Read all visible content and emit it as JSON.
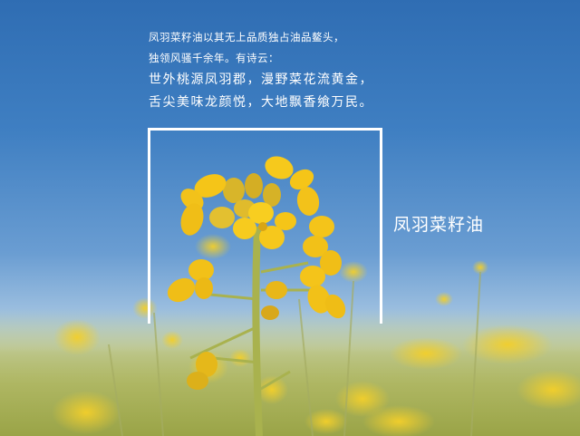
{
  "poem": {
    "line1": "凤羽菜籽油以其无上品质独占油品鳌头，",
    "line2": "独领风骚千余年。有诗云：",
    "line3": "世外桃源凤羽郡，漫野菜花流黄金，",
    "line4": "舌尖美味龙颜悦，大地飘香飨万民。"
  },
  "brand_name": "凤羽菜籽油",
  "colors": {
    "sky_top": "#2f6db3",
    "flower": "#f5c518",
    "stem": "#9aa64a",
    "text": "#ffffff"
  }
}
